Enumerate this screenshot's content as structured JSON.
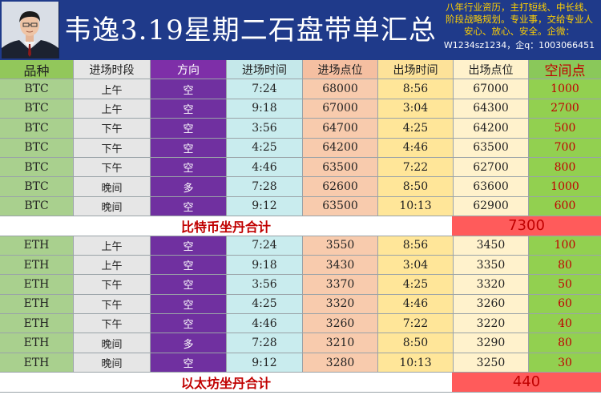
{
  "header": {
    "title": "韦逸3.19星期二石盘带单汇总",
    "blurb_lines": [
      "八年行业资历，主打短线、中长线、",
      "阶段战略规划。专业事，交给专业人",
      "安心、放心、安全。企微："
    ],
    "contact": "W1234sz1234，企q：1003066451"
  },
  "columns": [
    "品种",
    "进场时段",
    "方向",
    "进场时间",
    "进场点位",
    "出场时间",
    "出场点位",
    "空间点"
  ],
  "btc_rows": [
    [
      "BTC",
      "上午",
      "空",
      "7:24",
      "68000",
      "8:56",
      "67000",
      "1000"
    ],
    [
      "BTC",
      "上午",
      "空",
      "9:18",
      "67000",
      "3:04",
      "64300",
      "2700"
    ],
    [
      "BTC",
      "下午",
      "空",
      "3:56",
      "64700",
      "4:25",
      "64200",
      "500"
    ],
    [
      "BTC",
      "下午",
      "空",
      "4:25",
      "64200",
      "4:46",
      "63500",
      "700"
    ],
    [
      "BTC",
      "下午",
      "空",
      "4:46",
      "63500",
      "7:22",
      "62700",
      "800"
    ],
    [
      "BTC",
      "晚间",
      "多",
      "7:28",
      "62600",
      "8:50",
      "63600",
      "1000"
    ],
    [
      "BTC",
      "晚间",
      "空",
      "9:12",
      "63500",
      "10:13",
      "62900",
      "600"
    ]
  ],
  "btc_summary": {
    "label": "比特币坐丹合计",
    "total": "7300"
  },
  "eth_rows": [
    [
      "ETH",
      "上午",
      "空",
      "7:24",
      "3550",
      "8:56",
      "3450",
      "100"
    ],
    [
      "ETH",
      "上午",
      "空",
      "9:18",
      "3430",
      "3:04",
      "3350",
      "80"
    ],
    [
      "ETH",
      "下午",
      "空",
      "3:56",
      "3370",
      "4:25",
      "3320",
      "50"
    ],
    [
      "ETH",
      "下午",
      "空",
      "4:25",
      "3320",
      "4:46",
      "3260",
      "60"
    ],
    [
      "ETH",
      "下午",
      "空",
      "4:46",
      "3260",
      "7:22",
      "3220",
      "40"
    ],
    [
      "ETH",
      "晚间",
      "多",
      "7:28",
      "3210",
      "8:50",
      "3290",
      "80"
    ],
    [
      "ETH",
      "晚间",
      "空",
      "9:12",
      "3280",
      "10:13",
      "3250",
      "30"
    ]
  ],
  "eth_summary": {
    "label": "以太坊坐丹合计",
    "total": "440"
  },
  "colors": {
    "header_bg": "#1f3a8a",
    "blurb": "#ffd000",
    "direction_bg": "#7030a0",
    "space_text": "#c00000",
    "total_bg": "#ff5b5b"
  }
}
